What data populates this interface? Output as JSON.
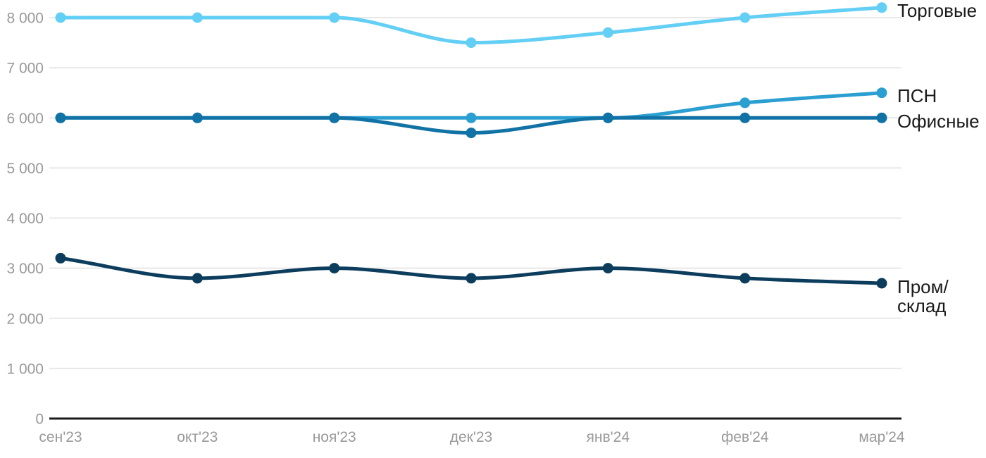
{
  "chart_data": {
    "type": "line",
    "title": "",
    "x_categories": [
      "сен'23",
      "окт'23",
      "ноя'23",
      "дек'23",
      "янв'24",
      "фев'24",
      "мар'24"
    ],
    "y_axis": {
      "ticks": [
        0,
        1000,
        2000,
        3000,
        4000,
        5000,
        6000,
        7000,
        8000
      ],
      "tick_labels": [
        "0",
        "1 000",
        "2 000",
        "3 000",
        "4 000",
        "5 000",
        "6 000",
        "7 000",
        "8 000"
      ],
      "min": 0,
      "max": 8200
    },
    "grid": "horizontal",
    "legend_position": "labels-at-line-ends-right",
    "series": [
      {
        "key": "torgovye",
        "name": "Торговые",
        "label_lines": [
          "Торговые"
        ],
        "color": "#63CFF5",
        "values": [
          8000,
          8000,
          8000,
          7500,
          7700,
          8000,
          8200
        ]
      },
      {
        "key": "psn",
        "name": "ПСН",
        "label_lines": [
          "ПСН"
        ],
        "color": "#2B9FD1",
        "values": [
          6000,
          6000,
          6000,
          6000,
          6000,
          6300,
          6500
        ]
      },
      {
        "key": "ofisnye",
        "name": "Офисные",
        "label_lines": [
          "Офисные"
        ],
        "color": "#1173A5",
        "values": [
          6000,
          6000,
          6000,
          5700,
          6000,
          6000,
          6000
        ]
      },
      {
        "key": "prom-sklad",
        "name": "Пром/склад",
        "label_lines": [
          "Пром/",
          "склад"
        ],
        "color": "#0D3D5D",
        "values": [
          3200,
          2800,
          3000,
          2800,
          3000,
          2800,
          2700
        ]
      }
    ],
    "colors": {
      "grid": "#E8E8E8",
      "axis": "#1A1A1A",
      "tick_text": "#999999",
      "series_label_text": "#1A1A1A",
      "background": "#FFFFFF"
    }
  }
}
